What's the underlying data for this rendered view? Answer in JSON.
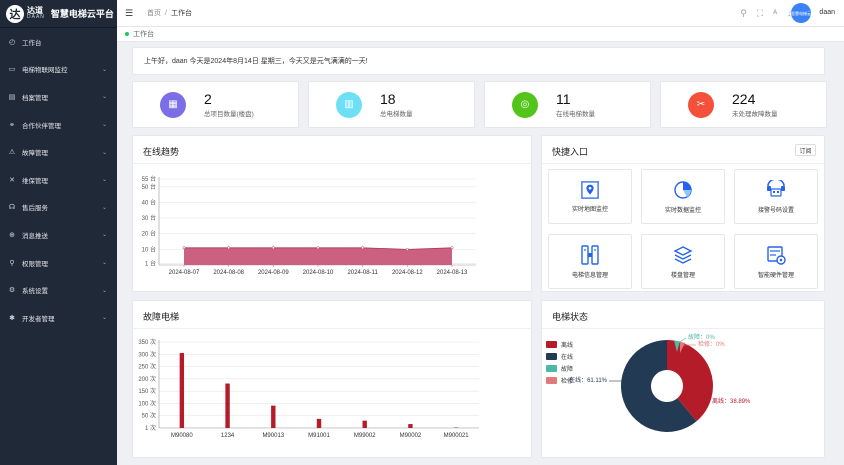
{
  "brand": {
    "logo_glyph": "达",
    "logo_cn": "达道",
    "logo_en": "DAAN",
    "title": "智慧电梯云平台"
  },
  "sidebar": {
    "items": [
      {
        "label": "工作台",
        "icon": "dashboard-icon",
        "glyph": "◴",
        "arrow": ""
      },
      {
        "label": "电梯物联网监控",
        "icon": "monitor-icon",
        "glyph": "▭",
        "arrow": "⌄"
      },
      {
        "label": "档案管理",
        "icon": "archive-icon",
        "glyph": "▤",
        "arrow": "⌄"
      },
      {
        "label": "合作伙伴管理",
        "icon": "partner-icon",
        "glyph": "⚭",
        "arrow": "⌄"
      },
      {
        "label": "故障管理",
        "icon": "fault-icon",
        "glyph": "⚠",
        "arrow": "⌄"
      },
      {
        "label": "维保管理",
        "icon": "maintenance-icon",
        "glyph": "✕",
        "arrow": "⌄"
      },
      {
        "label": "售后服务",
        "icon": "service-icon",
        "glyph": "☊",
        "arrow": "⌄"
      },
      {
        "label": "消息推送",
        "icon": "message-icon",
        "glyph": "⊕",
        "arrow": "⌄"
      },
      {
        "label": "权限管理",
        "icon": "permission-icon",
        "glyph": "⚲",
        "arrow": "⌄"
      },
      {
        "label": "系统设置",
        "icon": "settings-icon",
        "glyph": "⚙",
        "arrow": "⌄"
      },
      {
        "label": "开发者管理",
        "icon": "developer-icon",
        "glyph": "✱",
        "arrow": "⌄"
      }
    ]
  },
  "topbar": {
    "home": "首页",
    "separator": "/",
    "current": "工作台",
    "username": "daan",
    "avatar_text": "智慧电梯云"
  },
  "tag": {
    "label": "工作台"
  },
  "greeting": "上午好，daan 今天是2024年8月14日 星期三，今天又是元气满满的一天!",
  "stats": [
    {
      "value": "2",
      "label": "总项目数量(楼盘)",
      "color": "#7c6ee6",
      "icon": "building-icon",
      "glyph": "▦"
    },
    {
      "value": "18",
      "label": "总电梯数量",
      "color": "#6ee0f5",
      "icon": "elevator-icon",
      "glyph": "▥"
    },
    {
      "value": "11",
      "label": "在线电梯数量",
      "color": "#52c41a",
      "icon": "online-icon",
      "glyph": "◎"
    },
    {
      "value": "224",
      "label": "未处理故障数量",
      "color": "#f5513a",
      "icon": "fault-tool-icon",
      "glyph": "✂"
    }
  ],
  "online_trend": {
    "title": "在线趋势"
  },
  "quick": {
    "title": "快捷入口",
    "subscribe": "订阅",
    "tiles": [
      {
        "label": "实时地图监控",
        "icon": "map-pin-icon"
      },
      {
        "label": "实时数据监控",
        "icon": "pie-chart-icon"
      },
      {
        "label": "接警号码设置",
        "icon": "phone-icon"
      },
      {
        "label": "电梯信息管理",
        "icon": "elevator-info-icon"
      },
      {
        "label": "楼盘管理",
        "icon": "layers-icon"
      },
      {
        "label": "智能硬件管理",
        "icon": "hardware-icon"
      }
    ]
  },
  "faults": {
    "title": "故障电梯"
  },
  "status": {
    "title": "电梯状态"
  },
  "chart_data": [
    {
      "type": "area",
      "title": "在线趋势",
      "x": [
        "2024-08-07",
        "2024-08-08",
        "2024-08-09",
        "2024-08-10",
        "2024-08-11",
        "2024-08-12",
        "2024-08-13"
      ],
      "values": [
        11,
        11,
        11,
        11,
        11,
        10,
        11
      ],
      "yticks": [
        "1 台",
        "10 台",
        "20 台",
        "30 台",
        "40 台",
        "50 台",
        "55 台"
      ],
      "ylim": [
        0,
        55
      ],
      "color": "#c9577a",
      "grid": true
    },
    {
      "type": "bar",
      "title": "故障电梯",
      "categories": [
        "M90080",
        "1234",
        "M90013",
        "M91001",
        "M99002",
        "M90002",
        "M900021"
      ],
      "values": [
        305,
        181,
        91,
        37,
        30,
        16,
        2
      ],
      "yticks": [
        "1 次",
        "50 次",
        "100 次",
        "150 次",
        "200 次",
        "250 次",
        "300 次",
        "350 次"
      ],
      "ylim": [
        0,
        350
      ],
      "color": "#b51c29",
      "grid": true
    },
    {
      "type": "pie",
      "title": "电梯状态",
      "legend": "left",
      "slices": [
        {
          "name": "离线",
          "value": 38.89,
          "label": "离线：38.89%",
          "color": "#b51c29"
        },
        {
          "name": "在线",
          "value": 61.11,
          "label": "在线：61.11%",
          "color": "#233a55"
        },
        {
          "name": "故障",
          "value": 0,
          "label": "故障：0%",
          "color": "#4fb7a8"
        },
        {
          "name": "检修",
          "value": 0,
          "label": "检修：0%",
          "color": "#e07b7b"
        }
      ]
    }
  ]
}
